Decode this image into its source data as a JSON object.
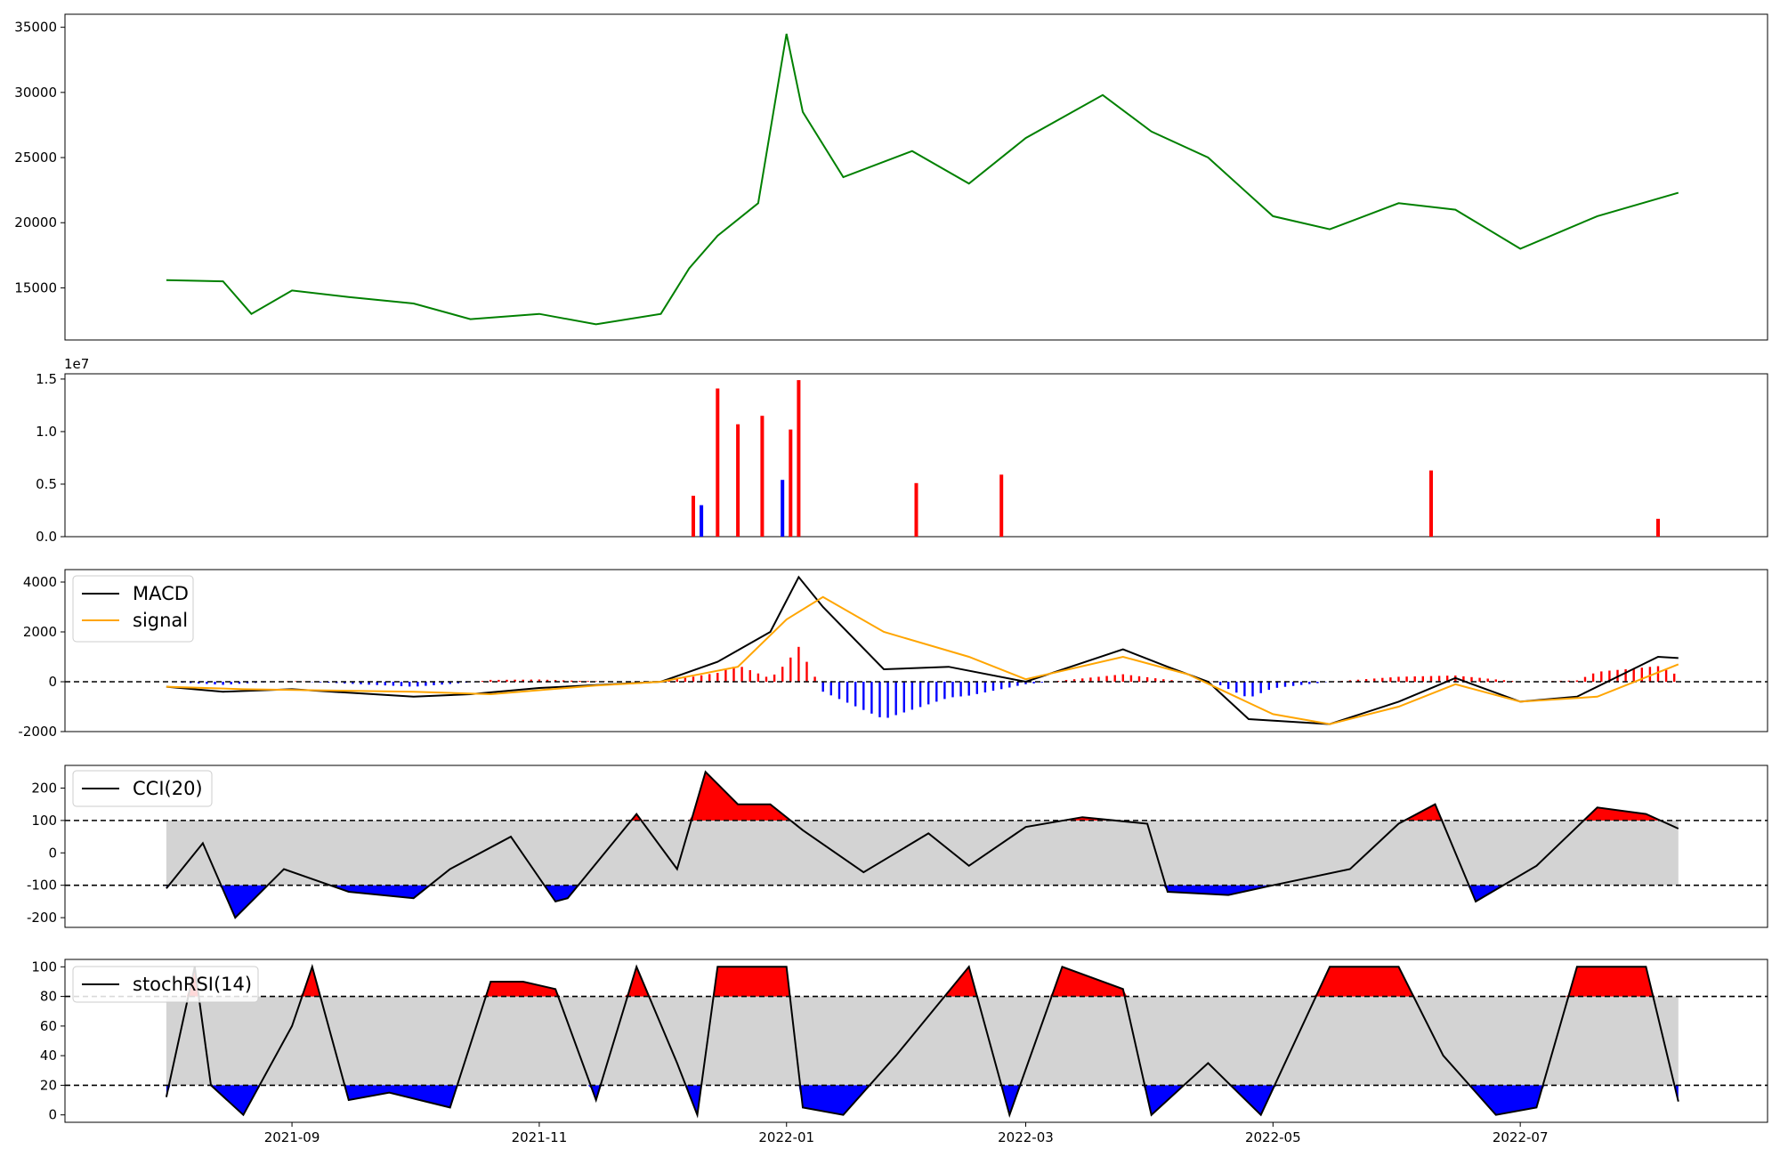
{
  "colors": {
    "price_line": "#008000",
    "up": "#ff0000",
    "down": "#0000ff",
    "band": "#d3d3d3",
    "macd": "#000000",
    "signal": "#ffa500"
  },
  "chart_data": [
    {
      "type": "line",
      "name": "price",
      "x_dates": [
        "2021-08-01",
        "2021-08-15",
        "2021-08-22",
        "2021-09-01",
        "2021-09-15",
        "2021-10-01",
        "2021-10-15",
        "2021-11-01",
        "2021-11-15",
        "2021-12-01",
        "2021-12-08",
        "2021-12-15",
        "2021-12-25",
        "2022-01-01",
        "2022-01-05",
        "2022-01-15",
        "2022-02-01",
        "2022-02-15",
        "2022-03-01",
        "2022-03-20",
        "2022-04-01",
        "2022-04-15",
        "2022-05-01",
        "2022-05-15",
        "2022-06-01",
        "2022-06-15",
        "2022-07-01",
        "2022-07-20",
        "2022-08-09"
      ],
      "values": [
        15600,
        15500,
        13000,
        14800,
        14300,
        13800,
        12600,
        13000,
        12200,
        13000,
        16500,
        19000,
        21500,
        34500,
        28500,
        23500,
        25500,
        23000,
        26500,
        29800,
        27000,
        25000,
        20500,
        19500,
        21500,
        21000,
        18000,
        20500,
        22300
      ],
      "ylim": [
        11000,
        36000
      ],
      "yticks": [
        "15000",
        "20000",
        "25000",
        "30000",
        "35000"
      ],
      "grid": false
    },
    {
      "type": "bar",
      "name": "volume",
      "axis_offset_label": "1e7",
      "ylim": [
        0,
        1.55
      ],
      "yticks": [
        "0.0",
        "0.5",
        "1.0",
        "1.5"
      ],
      "notable_bars": [
        {
          "date": "2021-12-09",
          "value": 3.9,
          "dir": "up"
        },
        {
          "date": "2021-12-11",
          "value": 3.0,
          "dir": "down"
        },
        {
          "date": "2021-12-15",
          "value": 14.1,
          "dir": "up"
        },
        {
          "date": "2021-12-20",
          "value": 10.7,
          "dir": "up"
        },
        {
          "date": "2021-12-26",
          "value": 11.5,
          "dir": "up"
        },
        {
          "date": "2021-12-31",
          "value": 5.4,
          "dir": "down"
        },
        {
          "date": "2022-01-02",
          "value": 10.2,
          "dir": "up"
        },
        {
          "date": "2022-01-04",
          "value": 14.9,
          "dir": "up"
        },
        {
          "date": "2022-02-02",
          "value": 5.1,
          "dir": "up"
        },
        {
          "date": "2022-02-23",
          "value": 5.9,
          "dir": "up"
        },
        {
          "date": "2022-06-09",
          "value": 6.3,
          "dir": "up"
        },
        {
          "date": "2022-08-04",
          "value": 1.7,
          "dir": "up"
        }
      ]
    },
    {
      "type": "line",
      "name": "macd-panel",
      "series": [
        {
          "name": "MACD",
          "x_dates": [
            "2021-08-01",
            "2021-08-15",
            "2021-09-01",
            "2021-10-01",
            "2021-10-15",
            "2021-11-01",
            "2021-12-01",
            "2021-12-15",
            "2021-12-28",
            "2022-01-04",
            "2022-01-10",
            "2022-01-25",
            "2022-02-10",
            "2022-03-01",
            "2022-03-25",
            "2022-04-05",
            "2022-04-15",
            "2022-04-25",
            "2022-05-15",
            "2022-06-01",
            "2022-06-15",
            "2022-07-01",
            "2022-07-15",
            "2022-08-04",
            "2022-08-09"
          ],
          "values": [
            -200,
            -400,
            -300,
            -600,
            -500,
            -250,
            0,
            800,
            2000,
            4200,
            3000,
            500,
            600,
            0,
            1300,
            600,
            0,
            -1500,
            -1700,
            -800,
            150,
            -800,
            -600,
            1000,
            950
          ]
        },
        {
          "name": "signal",
          "x_dates": [
            "2021-08-01",
            "2021-08-20",
            "2021-10-01",
            "2021-10-20",
            "2021-11-15",
            "2021-12-01",
            "2021-12-20",
            "2022-01-01",
            "2022-01-10",
            "2022-01-25",
            "2022-02-15",
            "2022-03-01",
            "2022-03-25",
            "2022-04-10",
            "2022-05-01",
            "2022-05-15",
            "2022-06-01",
            "2022-06-15",
            "2022-07-01",
            "2022-07-20",
            "2022-08-09"
          ],
          "values": [
            -200,
            -300,
            -400,
            -500,
            -150,
            0,
            600,
            2500,
            3400,
            2000,
            1000,
            100,
            1000,
            300,
            -1300,
            -1700,
            -1000,
            -100,
            -800,
            -600,
            700
          ]
        }
      ],
      "hist_color_rule": "red when >= 0, blue when < 0",
      "ylim": [
        -2000,
        4500
      ],
      "yticks": [
        "-2000",
        "0",
        "2000",
        "4000"
      ],
      "hline": 0,
      "legend": [
        "MACD",
        "signal"
      ],
      "legend_placement": "upper-left"
    },
    {
      "type": "line",
      "name": "cci",
      "series_name": "CCI(20)",
      "x_dates": [
        "2021-08-01",
        "2021-08-10",
        "2021-08-18",
        "2021-08-30",
        "2021-09-15",
        "2021-10-01",
        "2021-10-10",
        "2021-10-25",
        "2021-11-05",
        "2021-11-08",
        "2021-11-25",
        "2021-12-05",
        "2021-12-12",
        "2021-12-20",
        "2021-12-28",
        "2022-01-05",
        "2022-01-20",
        "2022-02-05",
        "2022-02-15",
        "2022-03-01",
        "2022-03-15",
        "2022-03-31",
        "2022-04-05",
        "2022-04-20",
        "2022-05-01",
        "2022-05-20",
        "2022-06-01",
        "2022-06-10",
        "2022-06-20",
        "2022-07-05",
        "2022-07-20",
        "2022-08-01",
        "2022-08-09"
      ],
      "values": [
        -110,
        30,
        -200,
        -50,
        -120,
        -140,
        -50,
        50,
        -150,
        -140,
        120,
        -50,
        250,
        150,
        150,
        70,
        -60,
        60,
        -40,
        80,
        110,
        90,
        -120,
        -130,
        -100,
        -50,
        90,
        150,
        -150,
        -40,
        140,
        120,
        75
      ],
      "ylim": [
        -230,
        270
      ],
      "yticks": [
        "-200",
        "-100",
        "0",
        "100",
        "200"
      ],
      "hlines": [
        100,
        -100
      ],
      "legend": [
        "CCI(20)"
      ],
      "legend_placement": "upper-left"
    },
    {
      "type": "line",
      "name": "stoch-rsi",
      "series_name": "stochRSI(14)",
      "x_dates": [
        "2021-08-01",
        "2021-08-08",
        "2021-08-12",
        "2021-08-20",
        "2021-09-01",
        "2021-09-06",
        "2021-09-15",
        "2021-09-25",
        "2021-10-10",
        "2021-10-20",
        "2021-10-28",
        "2021-11-05",
        "2021-11-15",
        "2021-11-25",
        "2021-12-05",
        "2021-12-10",
        "2021-12-15",
        "2022-01-01",
        "2022-01-05",
        "2022-01-15",
        "2022-01-28",
        "2022-02-15",
        "2022-02-25",
        "2022-03-10",
        "2022-03-25",
        "2022-04-01",
        "2022-04-15",
        "2022-04-28",
        "2022-05-15",
        "2022-06-01",
        "2022-06-12",
        "2022-06-25",
        "2022-07-05",
        "2022-07-15",
        "2022-08-01",
        "2022-08-09"
      ],
      "values": [
        12,
        100,
        20,
        0,
        60,
        100,
        10,
        15,
        5,
        90,
        90,
        85,
        10,
        100,
        35,
        0,
        100,
        100,
        5,
        0,
        40,
        100,
        0,
        100,
        85,
        0,
        35,
        0,
        100,
        100,
        40,
        0,
        5,
        100,
        100,
        9
      ],
      "ylim": [
        -5,
        105
      ],
      "yticks": [
        "0",
        "20",
        "40",
        "60",
        "80",
        "100"
      ],
      "hlines": [
        80,
        20
      ],
      "legend": [
        "stochRSI(14)"
      ],
      "legend_placement": "upper-left",
      "xticks": [
        "2021-09",
        "2021-11",
        "2022-01",
        "2022-03",
        "2022-05",
        "2022-07"
      ]
    }
  ]
}
